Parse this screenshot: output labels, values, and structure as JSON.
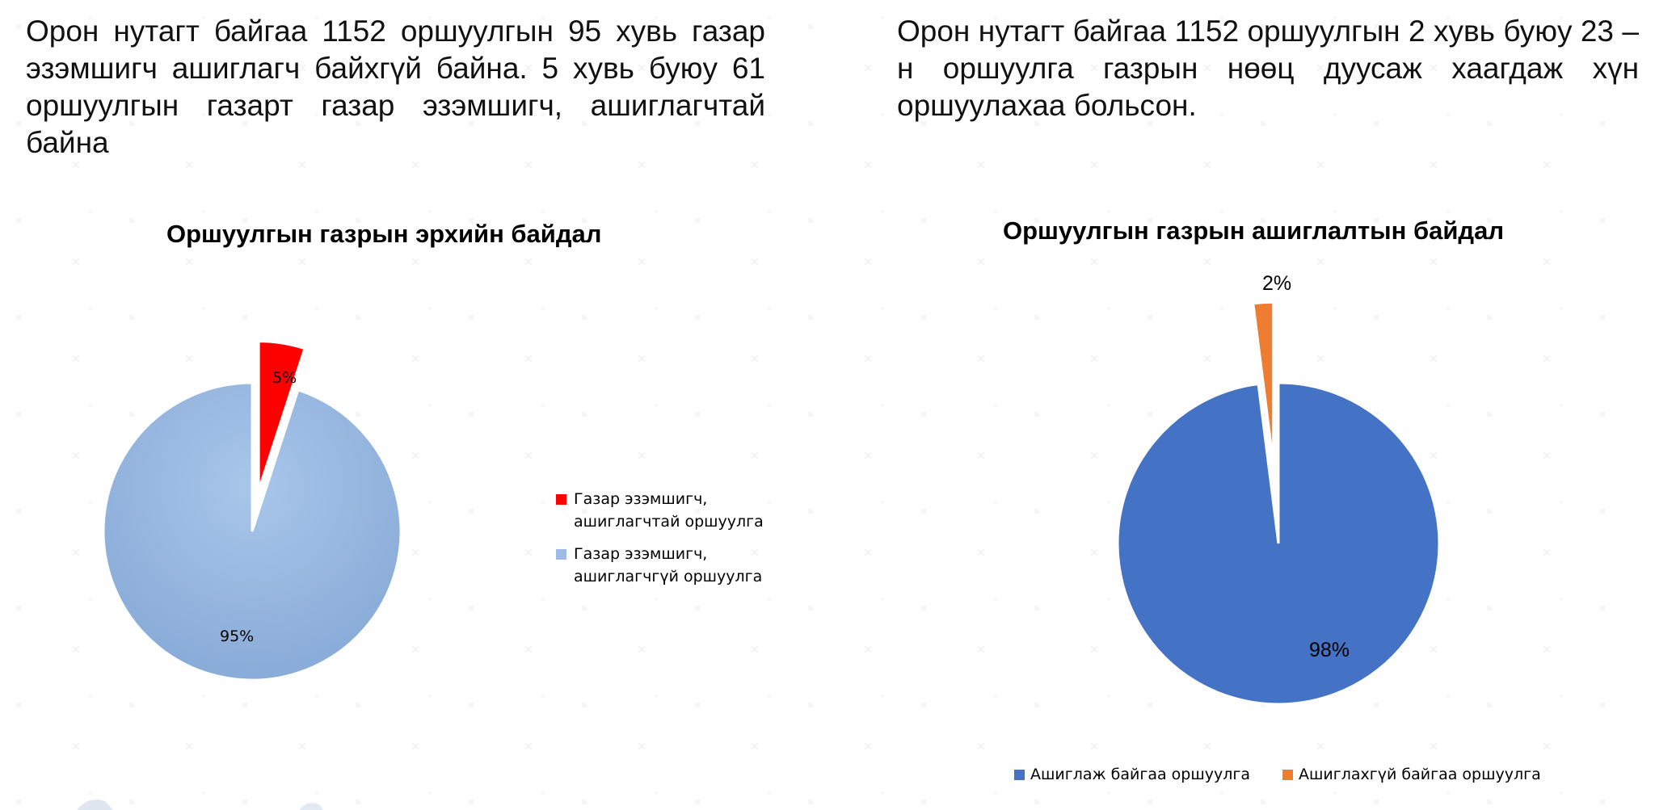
{
  "page": {
    "paragraph_left": "Орон нутагт байгаа 1152 оршуулгын 95 хувь газар эзэмшигч ашиглагч байхгүй байна. 5 хувь буюу 61 оршуулгын газарт газар эзэмшигч, ашиглагчтай байна",
    "paragraph_right": "Орон нутагт байгаа 1152 оршуулгын 2 хувь буюу 23 – н оршуулга газрын нөөц дуусаж хаагдаж хүн оршуулахаа больсон."
  },
  "chart_data": [
    {
      "type": "pie",
      "title": "Оршуулгын газрын эрхийн байдал",
      "categories": [
        "Газар эзэмшигч, ашиглагчтай оршуулга",
        "Газар эзэмшигч, ашиглагчгүй оршуулга"
      ],
      "values": [
        5,
        95
      ],
      "labels": [
        "5%",
        "95%"
      ],
      "colors": [
        "#ff0000",
        "#9dbde6"
      ],
      "exploded": [
        true,
        false
      ],
      "legend_position": "right"
    },
    {
      "type": "pie",
      "title": "Оршуулгын газрын ашиглалтын байдал",
      "categories": [
        "Ашиглаж байгаа оршуулга",
        "Ашиглахгүй байгаа оршуулга"
      ],
      "values": [
        98,
        2
      ],
      "labels": [
        "98%",
        "2%"
      ],
      "colors": [
        "#4472c4",
        "#ed7d31"
      ],
      "exploded": [
        false,
        true
      ],
      "legend_position": "bottom"
    }
  ]
}
